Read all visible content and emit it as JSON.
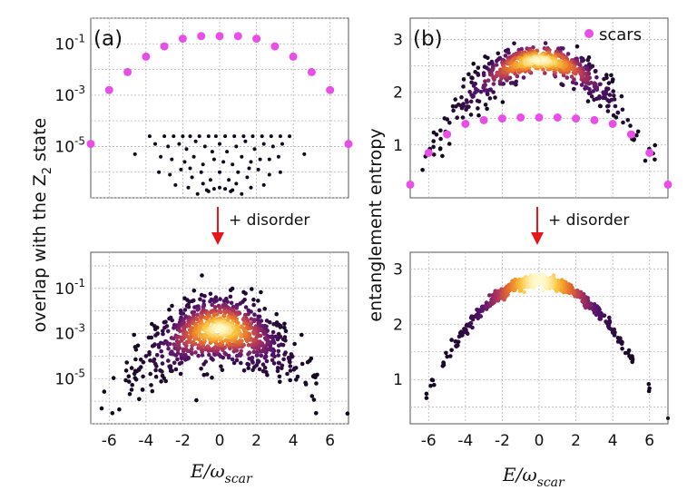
{
  "figure": {
    "panel_a_label": "(a)",
    "panel_b_label": "(b)",
    "disorder_label": "+ disorder",
    "ylabel_left": "overlap with the Z",
    "ylabel_left_sub": "2",
    "ylabel_left_tail": " state",
    "ylabel_right": "entanglement entropy",
    "xlabel_main": "E/ω",
    "xlabel_sub": "scar",
    "arrow_color": "#e8141c",
    "scar_color": "#e94ee6"
  },
  "chart_data": [
    {
      "id": "a-top",
      "type": "scatter",
      "title": "(a)",
      "xlim": [
        -7,
        7
      ],
      "yscale": "log",
      "ylim_log10": [
        -7.0,
        0.0
      ],
      "ytick_exponents": [
        -1,
        -3,
        -5
      ],
      "xticks": [],
      "grid": true,
      "series": [
        {
          "name": "scars",
          "color": "#e94ee6",
          "x": [
            -7,
            -6,
            -5,
            -4,
            -3,
            -2,
            -1,
            0,
            1,
            2,
            3,
            4,
            5,
            6,
            7
          ],
          "log10_y": [
            -4.9,
            -2.8,
            -2.1,
            -1.5,
            -1.1,
            -0.8,
            -0.7,
            -0.7,
            -0.7,
            -0.8,
            -1.1,
            -1.5,
            -2.1,
            -2.8,
            -4.9
          ]
        },
        {
          "name": "",
          "color": "#10081c",
          "x": [
            -3.8,
            -3.0,
            -2.5,
            -2.0,
            -1.6,
            -1.1,
            -0.6,
            -0.2,
            0.3,
            0.8,
            1.3,
            1.8,
            2.3,
            2.8,
            3.3,
            3.8,
            -3.5,
            -2.8,
            -2.2,
            -1.8,
            -1.3,
            -0.8,
            -0.4,
            0.0,
            0.4,
            0.9,
            1.4,
            1.9,
            2.4,
            2.9,
            3.4,
            -3.2,
            -2.6,
            -1.9,
            -1.4,
            -0.9,
            -0.3,
            0.2,
            0.7,
            1.2,
            1.7,
            2.2,
            2.7,
            3.2,
            -3.3,
            -2.7,
            -2.1,
            -1.5,
            -1.0,
            -0.5,
            0.0,
            0.5,
            1.0,
            1.5,
            2.1,
            2.7,
            3.3,
            -2.4,
            -1.7,
            -0.7,
            0.7,
            1.7,
            2.4,
            -1.2,
            -0.6,
            -0.3,
            0.0,
            0.3,
            0.6,
            1.2,
            -4.6,
            4.6,
            -1.6,
            1.6,
            -0.9,
            0.9
          ],
          "log10_y": [
            -4.6,
            -4.6,
            -4.6,
            -4.6,
            -4.6,
            -4.6,
            -4.6,
            -4.6,
            -4.6,
            -4.6,
            -4.6,
            -4.6,
            -4.6,
            -4.6,
            -4.6,
            -4.6,
            -4.9,
            -5.0,
            -4.9,
            -5.1,
            -4.8,
            -5.0,
            -5.2,
            -4.9,
            -5.2,
            -5.0,
            -4.8,
            -5.1,
            -4.9,
            -5.0,
            -4.9,
            -5.4,
            -5.5,
            -5.6,
            -5.4,
            -5.7,
            -5.5,
            -5.6,
            -5.7,
            -5.4,
            -5.6,
            -5.5,
            -5.5,
            -5.4,
            -6.0,
            -6.1,
            -5.9,
            -6.2,
            -6.0,
            -6.3,
            -6.0,
            -6.3,
            -6.0,
            -6.2,
            -5.9,
            -6.1,
            -6.0,
            -6.5,
            -6.6,
            -6.7,
            -6.7,
            -6.6,
            -6.5,
            -6.85,
            -6.75,
            -6.65,
            -6.6,
            -6.65,
            -6.75,
            -6.85,
            -5.3,
            -5.3,
            -5.85,
            -5.85,
            -6.45,
            -6.45
          ]
        }
      ]
    },
    {
      "id": "a-bottom",
      "type": "scatter",
      "xlim": [
        -7,
        7
      ],
      "yscale": "log",
      "ylim_log10": [
        -7.0,
        0.6
      ],
      "ytick_exponents": [
        -1,
        -3,
        -5
      ],
      "xticks": [
        -6,
        -4,
        -2,
        0,
        2,
        4,
        6
      ],
      "xlabel": "E/ω_scar",
      "grid": true,
      "note": "dense cloud of disordered eigenstates, color-coded by density (dark purple to light yellow), peaked near E=0 at overlap ~1e-3"
    },
    {
      "id": "b-top",
      "type": "scatter",
      "title": "(b)",
      "xlim": [
        -7,
        7
      ],
      "ylim": [
        0.0,
        3.4
      ],
      "yticks": [
        1,
        2,
        3
      ],
      "xticks": [],
      "legend": "top-right",
      "grid": true,
      "series": [
        {
          "name": "scars",
          "color": "#e94ee6",
          "x": [
            -7,
            -6,
            -5,
            -4,
            -3,
            -2,
            -1,
            0,
            1,
            2,
            3,
            4,
            5,
            6,
            7
          ],
          "y": [
            0.25,
            0.85,
            1.2,
            1.4,
            1.47,
            1.5,
            1.52,
            1.52,
            1.52,
            1.5,
            1.47,
            1.4,
            1.2,
            0.85,
            0.25
          ]
        }
      ],
      "note": "thermal eigenstates form an arc peaking near S=2.6 at E=0, color-coded by density"
    },
    {
      "id": "b-bottom",
      "type": "scatter",
      "xlim": [
        -7,
        7
      ],
      "ylim": [
        0.2,
        3.3
      ],
      "yticks": [
        1,
        2,
        3
      ],
      "xticks": [
        -6,
        -4,
        -2,
        0,
        2,
        4,
        6
      ],
      "xlabel": "E/ω_scar",
      "grid": true,
      "note": "single arc from S~0.8 at |E|=6 to S~2.8 at E=0, color-coded by density"
    }
  ]
}
